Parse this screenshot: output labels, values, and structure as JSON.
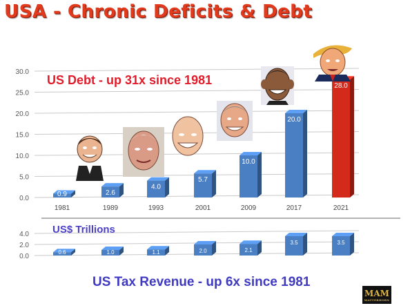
{
  "title": "USA - Chronic Deficits & Debt",
  "annotations": {
    "debt": "US Debt  -  up 31x since 1981",
    "units": "US$ Trillions",
    "tax": "US Tax Revenue  - up 6x since 1981"
  },
  "logo": {
    "mark": "MAM",
    "sub": "MATTERHORN"
  },
  "colors": {
    "bar": "#4a7fc4",
    "highlight": "#d42a1c",
    "title": "#e23a1c"
  },
  "chart_data": [
    {
      "type": "bar",
      "categories": [
        "1981",
        "1989",
        "1993",
        "2001",
        "2009",
        "2017",
        "2021"
      ],
      "values": [
        0.9,
        2.6,
        4.0,
        5.7,
        10.0,
        20.0,
        28.0
      ],
      "value_labels": [
        "0.9",
        "2.6",
        "4.0",
        "5.7",
        "10.0",
        "20.0",
        "28.0"
      ],
      "ylim": [
        0,
        30
      ],
      "yticks": [
        "30.0",
        "25.0",
        "20.0",
        "15.0",
        "10.0",
        "5.0",
        "0.0"
      ],
      "ytick_values": [
        30,
        25,
        20,
        15,
        10,
        5,
        0
      ],
      "grid": true,
      "highlight_index": 6
    },
    {
      "type": "bar",
      "categories": [
        "1981",
        "1989",
        "1993",
        "2001",
        "2009",
        "2017",
        "2021"
      ],
      "values": [
        0.6,
        1.0,
        1.1,
        2.0,
        2.1,
        3.5,
        3.5
      ],
      "value_labels": [
        "0.6",
        "1.0",
        "1.1",
        "2.0",
        "2.1",
        "3.5",
        "3.5"
      ],
      "ylim": [
        0,
        4
      ],
      "yticks": [
        "4.0",
        "2.0",
        "0.0"
      ],
      "ytick_values": [
        4,
        2,
        0
      ],
      "grid": true
    }
  ]
}
